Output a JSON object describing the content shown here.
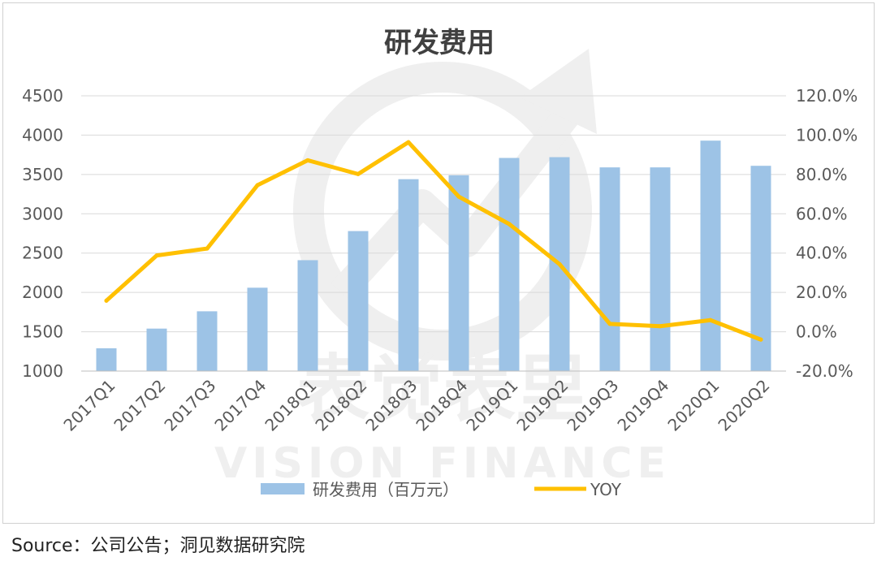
{
  "chart_data": {
    "type": "bar",
    "title": "研发费用",
    "categories": [
      "2017Q1",
      "2017Q2",
      "2017Q3",
      "2017Q4",
      "2018Q1",
      "2018Q2",
      "2018Q3",
      "2018Q4",
      "2019Q1",
      "2019Q2",
      "2019Q3",
      "2019Q4",
      "2020Q1",
      "2020Q2"
    ],
    "series": [
      {
        "name": "研发费用（百万元）",
        "type": "bar",
        "axis": "left",
        "color": "#9dc3e6",
        "values": [
          1290,
          1540,
          1760,
          2060,
          2410,
          2780,
          3440,
          3490,
          3710,
          3720,
          3590,
          3590,
          3930,
          3610
        ]
      },
      {
        "name": "YOY",
        "type": "line",
        "axis": "right",
        "color": "#ffc000",
        "unit": "%",
        "values": [
          15.8,
          38.8,
          42.3,
          74.5,
          87.2,
          80.2,
          96.4,
          68.7,
          54.8,
          34.4,
          4.0,
          2.8,
          5.9,
          -4.0
        ]
      }
    ],
    "y_left": {
      "min": 1000,
      "max": 4500,
      "step": 500,
      "ticks": [
        "1000",
        "1500",
        "2000",
        "2500",
        "3000",
        "3500",
        "4000",
        "4500"
      ]
    },
    "y_right": {
      "min": -20,
      "max": 120,
      "step": 20,
      "ticks": [
        "-20.0%",
        "0.0%",
        "20.0%",
        "40.0%",
        "60.0%",
        "80.0%",
        "100.0%",
        "120.0%"
      ]
    },
    "grid": true,
    "legend_position": "bottom"
  },
  "watermark": {
    "text_cn": "表觉表里",
    "text_en": "VISION FINANCE"
  },
  "source_text": "Source：公司公告；洞见数据研究院"
}
